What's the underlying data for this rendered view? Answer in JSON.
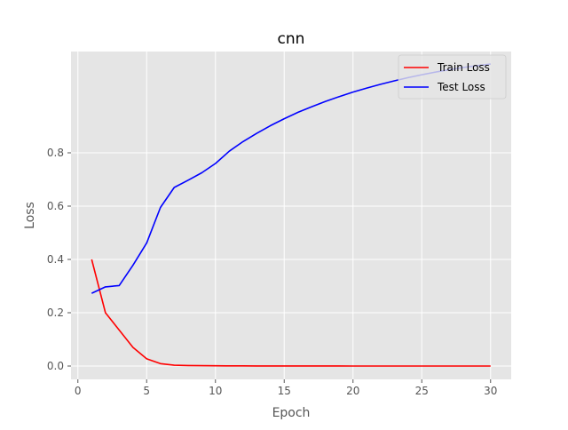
{
  "chart_data": {
    "type": "line",
    "title": "cnn",
    "xlabel": "Epoch",
    "ylabel": "Loss",
    "xlim": [
      -0.5,
      31.5
    ],
    "ylim": [
      -0.05,
      1.18
    ],
    "xticks": [
      0,
      5,
      10,
      15,
      20,
      25,
      30
    ],
    "yticks": [
      0.0,
      0.2,
      0.4,
      0.6,
      0.8
    ],
    "xtick_labels": [
      "0",
      "5",
      "10",
      "15",
      "20",
      "25",
      "30"
    ],
    "ytick_labels": [
      "0.0",
      "0.2",
      "0.4",
      "0.6",
      "0.8"
    ],
    "grid": true,
    "legend_position": "top-right",
    "series": [
      {
        "name": "Train Loss",
        "color": "#ff0000",
        "x": [
          1,
          2,
          3,
          4,
          5,
          6,
          7,
          8,
          9,
          10,
          11,
          12,
          13,
          14,
          15,
          16,
          17,
          18,
          19,
          20,
          21,
          22,
          23,
          24,
          25,
          26,
          27,
          28,
          29,
          30
        ],
        "y": [
          0.4,
          0.2,
          0.135,
          0.07,
          0.027,
          0.009,
          0.003,
          0.002,
          0.0015,
          0.001,
          0.0008,
          0.0006,
          0.0005,
          0.0004,
          0.0003,
          0.0003,
          0.0002,
          0.0002,
          0.0002,
          0.0001,
          0.0001,
          0.0001,
          0.0001,
          0.0001,
          0.0001,
          0.0001,
          0.0001,
          0.0001,
          0.0001,
          0.0001
        ]
      },
      {
        "name": "Test Loss",
        "color": "#0000ff",
        "x": [
          1,
          2,
          3,
          4,
          5,
          6,
          7,
          8,
          9,
          10,
          11,
          12,
          13,
          14,
          15,
          16,
          17,
          18,
          19,
          20,
          21,
          22,
          23,
          24,
          25,
          26,
          27,
          28,
          29,
          30
        ],
        "y": [
          0.273,
          0.297,
          0.302,
          0.378,
          0.462,
          0.595,
          0.67,
          0.697,
          0.725,
          0.76,
          0.806,
          0.842,
          0.873,
          0.902,
          0.928,
          0.952,
          0.973,
          0.993,
          1.011,
          1.028,
          1.043,
          1.057,
          1.07,
          1.082,
          1.093,
          1.103,
          1.112,
          1.12,
          1.127,
          1.133
        ]
      }
    ]
  }
}
